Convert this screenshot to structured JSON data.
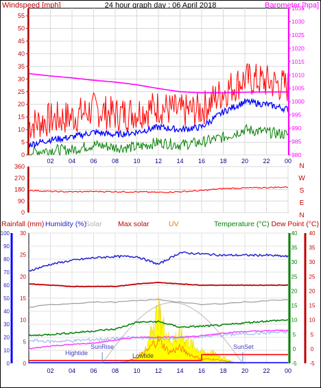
{
  "header": {
    "title": "24 hour graph day : 06 April 2018",
    "left_label": "Windspeed [mph]",
    "right_label": "Barometer [hpa]"
  },
  "colors": {
    "wind": "#ff0000",
    "gust": "#ff0000",
    "avg": "#0000ff",
    "green": "#008000",
    "baro": "#ff00ff",
    "dir": "#ff0000",
    "humidity": "#2020d0",
    "rain": "#0000ff",
    "max_solar": "#c00000",
    "solar": "#ffff00",
    "uv": "#ff8000",
    "temp": "#008000",
    "dew": "#ff0000",
    "grey": "#9a9a9a",
    "light_blue": "#a0c0f0",
    "violet": "#ff40ff"
  },
  "chart_data": [
    {
      "type": "line",
      "id": "wind",
      "y_label_left": "Windspeed [mph]",
      "y_label_right": "Barometer [hpa]",
      "x_ticks": [
        "02",
        "04",
        "06",
        "08",
        "10",
        "12",
        "14",
        "16",
        "18",
        "20",
        "22",
        "00"
      ],
      "y_left_ticks": [
        0,
        5,
        10,
        15,
        20,
        25,
        30,
        35,
        40,
        45,
        50,
        55
      ],
      "y_right_ticks": [
        980,
        985,
        990,
        995,
        1000,
        1005,
        1010,
        1015,
        1020,
        1025,
        1030,
        1035
      ],
      "ylim_left": [
        0,
        58
      ],
      "ylim_right": [
        980,
        1035
      ],
      "hours": [
        0,
        2,
        4,
        6,
        8,
        10,
        12,
        14,
        16,
        18,
        20,
        22,
        24
      ],
      "series": [
        {
          "key": "gust",
          "values": [
            12,
            14,
            15,
            18,
            16,
            17,
            19,
            17,
            18,
            25,
            30,
            29,
            27
          ]
        },
        {
          "key": "avg",
          "values": [
            4,
            6,
            7,
            9,
            8,
            9,
            11,
            10,
            11,
            17,
            21,
            20,
            18
          ]
        },
        {
          "key": "green",
          "values": [
            1,
            2,
            2,
            4,
            3,
            3,
            5,
            4,
            5,
            7,
            10,
            9,
            8
          ]
        },
        {
          "key": "baro",
          "values": [
            1010.5,
            1009.6,
            1008.9,
            1008.0,
            1007.3,
            1006.3,
            1004.9,
            1003.7,
            1003.3,
            1003.3,
            1003.5,
            1003.6,
            1003.6
          ]
        }
      ]
    },
    {
      "type": "line",
      "id": "direction",
      "y_ticks": [
        0,
        90,
        180,
        270,
        360
      ],
      "y_right_labels": [
        "N",
        "W",
        "S",
        "E",
        "N"
      ],
      "ylim": [
        0,
        360
      ],
      "hours": [
        0,
        2,
        4,
        6,
        8,
        10,
        12,
        14,
        16,
        18,
        20,
        22,
        24
      ],
      "values": [
        175,
        165,
        162,
        165,
        163,
        162,
        158,
        163,
        172,
        188,
        192,
        195,
        200
      ]
    },
    {
      "type": "line",
      "id": "lower",
      "legend": [
        "Rainfall (mm)",
        "Humidity (%)",
        "Solar",
        "Max solar",
        "UV",
        "Temperature (°C)",
        "Dew Point (°C)"
      ],
      "x_ticks": [
        "02",
        "04",
        "06",
        "08",
        "10",
        "12",
        "14",
        "16",
        "18",
        "20",
        "22",
        "00"
      ],
      "humidity_ticks": [
        0,
        10,
        20,
        30,
        40,
        50,
        60,
        70,
        80,
        90,
        100
      ],
      "rain_ticks": [
        0,
        5,
        10,
        15,
        20,
        25,
        30
      ],
      "temp_ticks": [
        -5,
        0,
        5,
        10,
        15,
        20,
        25,
        30,
        35,
        40
      ],
      "ylim_humidity": [
        0,
        100
      ],
      "ylim_temp": [
        -5,
        40
      ],
      "hours": [
        0,
        2,
        4,
        6,
        8,
        10,
        12,
        14,
        16,
        18,
        20,
        22,
        24
      ],
      "annotations": {
        "hightide": "Hightide",
        "sunrise": "SunRise",
        "lowtide": "Lowtide",
        "sunset": "SunSet"
      },
      "series": [
        {
          "key": "humidity",
          "values": [
            71,
            76,
            79,
            81,
            82,
            82,
            76,
            85,
            84,
            83,
            83,
            83,
            82
          ]
        },
        {
          "key": "max_solar",
          "values": [
            61,
            60,
            59,
            59,
            59,
            61,
            62,
            61,
            60,
            60,
            60,
            60,
            60
          ]
        },
        {
          "key": "grey",
          "values": [
            43,
            45,
            46,
            47,
            47,
            48,
            49,
            47,
            45,
            46,
            47,
            48,
            49
          ]
        },
        {
          "key": "temp",
          "values": [
            4.5,
            5,
            5.5,
            6.2,
            6.8,
            9.2,
            9.4,
            7.5,
            7.8,
            8.2,
            9,
            9.6,
            10
          ]
        },
        {
          "key": "light_blue",
          "values": [
            3,
            2.5,
            2.8,
            3.2,
            3.5,
            4,
            3.6,
            3.9,
            4.2,
            4.8,
            5.2,
            5.5,
            5.8
          ]
        },
        {
          "key": "violet",
          "values": [
            0,
            1,
            1.5,
            2,
            3,
            4,
            4,
            4,
            4.5,
            5.5,
            6,
            6.2,
            6.5
          ]
        },
        {
          "key": "rain",
          "values": [
            0,
            0,
            0,
            0,
            0,
            0,
            0,
            0,
            0,
            0,
            0,
            0,
            0
          ]
        },
        {
          "key": "dew",
          "values": [
            -4,
            -4,
            -4,
            -4,
            -4,
            -4,
            -4,
            -4,
            -2,
            -2,
            -2,
            -2,
            -2
          ]
        }
      ],
      "solar_hours": [
        7,
        8,
        9,
        10,
        11,
        11.5,
        12,
        13,
        14,
        15,
        16,
        17,
        18,
        19,
        20
      ],
      "solar_values": [
        0,
        5,
        30,
        100,
        300,
        700,
        900,
        400,
        500,
        350,
        200,
        180,
        100,
        20,
        0
      ],
      "uv_hours": [
        7,
        9,
        10,
        11,
        11.5,
        12,
        13,
        14,
        15,
        16,
        17,
        18,
        19,
        20
      ],
      "uv_values": [
        0,
        10,
        40,
        90,
        140,
        170,
        80,
        110,
        60,
        30,
        30,
        20,
        5,
        0
      ]
    }
  ]
}
